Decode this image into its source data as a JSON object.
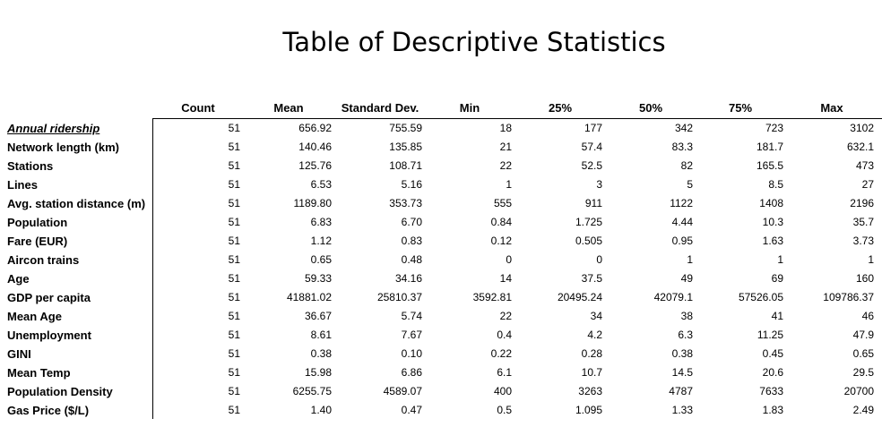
{
  "title": "Table of Descriptive Statistics",
  "columns": [
    "Count",
    "Mean",
    "Standard Dev.",
    "Min",
    "25%",
    "50%",
    "75%",
    "Max"
  ],
  "rows": [
    {
      "label": "Annual ridership",
      "values": [
        "51",
        "656.92",
        "755.59",
        "18",
        "177",
        "342",
        "723",
        "3102"
      ]
    },
    {
      "label": "Network length (km)",
      "values": [
        "51",
        "140.46",
        "135.85",
        "21",
        "57.4",
        "83.3",
        "181.7",
        "632.1"
      ]
    },
    {
      "label": "Stations",
      "values": [
        "51",
        "125.76",
        "108.71",
        "22",
        "52.5",
        "82",
        "165.5",
        "473"
      ]
    },
    {
      "label": "Lines",
      "values": [
        "51",
        "6.53",
        "5.16",
        "1",
        "3",
        "5",
        "8.5",
        "27"
      ]
    },
    {
      "label": "Avg. station distance (m)",
      "values": [
        "51",
        "1189.80",
        "353.73",
        "555",
        "911",
        "1122",
        "1408",
        "2196"
      ]
    },
    {
      "label": "Population",
      "values": [
        "51",
        "6.83",
        "6.70",
        "0.84",
        "1.725",
        "4.44",
        "10.3",
        "35.7"
      ]
    },
    {
      "label": "Fare (EUR)",
      "values": [
        "51",
        "1.12",
        "0.83",
        "0.12",
        "0.505",
        "0.95",
        "1.63",
        "3.73"
      ]
    },
    {
      "label": "Aircon trains",
      "values": [
        "51",
        "0.65",
        "0.48",
        "0",
        "0",
        "1",
        "1",
        "1"
      ]
    },
    {
      "label": "Age",
      "values": [
        "51",
        "59.33",
        "34.16",
        "14",
        "37.5",
        "49",
        "69",
        "160"
      ]
    },
    {
      "label": "GDP per capita",
      "values": [
        "51",
        "41881.02",
        "25810.37",
        "3592.81",
        "20495.24",
        "42079.1",
        "57526.05",
        "109786.37"
      ]
    },
    {
      "label": "Mean Age",
      "values": [
        "51",
        "36.67",
        "5.74",
        "22",
        "34",
        "38",
        "41",
        "46"
      ]
    },
    {
      "label": "Unemployment",
      "values": [
        "51",
        "8.61",
        "7.67",
        "0.4",
        "4.2",
        "6.3",
        "11.25",
        "47.9"
      ]
    },
    {
      "label": "GINI",
      "values": [
        "51",
        "0.38",
        "0.10",
        "0.22",
        "0.28",
        "0.38",
        "0.45",
        "0.65"
      ]
    },
    {
      "label": "Mean Temp",
      "values": [
        "51",
        "15.98",
        "6.86",
        "6.1",
        "10.7",
        "14.5",
        "20.6",
        "29.5"
      ]
    },
    {
      "label": "Population Density",
      "values": [
        "51",
        "6255.75",
        "4589.07",
        "400",
        "3263",
        "4787",
        "7633",
        "20700"
      ]
    },
    {
      "label": "Gas Price ($/L)",
      "values": [
        "51",
        "1.40",
        "0.47",
        "0.5",
        "1.095",
        "1.33",
        "1.83",
        "2.49"
      ]
    }
  ]
}
